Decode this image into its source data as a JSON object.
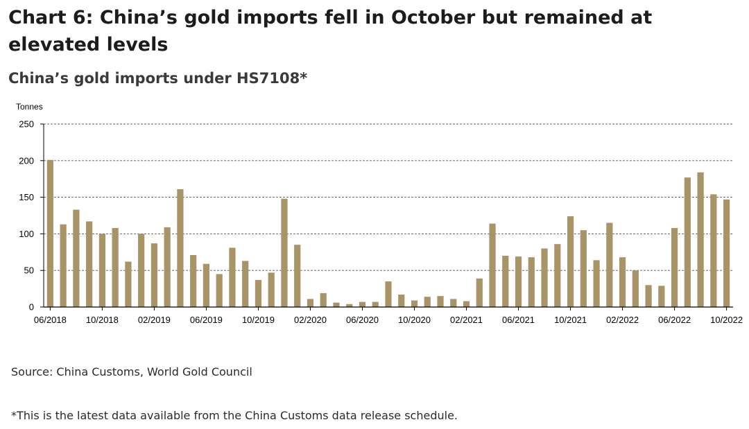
{
  "title": "Chart 6: China’s gold imports fell in October but remained at elevated levels",
  "subtitle": "China’s gold imports under HS7108*",
  "source": "Source: China Customs, World Gold Council",
  "footnote": "*This is the latest data available from the China Customs data release schedule.",
  "colors": {
    "bar": "#a89467",
    "gridline": "#555555",
    "axis": "#000000"
  },
  "chart_data": {
    "type": "bar",
    "ylabel": "Tonnes",
    "xlabel": "",
    "ylim": [
      0,
      250
    ],
    "yticks": [
      0,
      50,
      100,
      150,
      200,
      250
    ],
    "grid": "horizontal-dashed",
    "categories": [
      "06/2018",
      "07/2018",
      "08/2018",
      "09/2018",
      "10/2018",
      "11/2018",
      "12/2018",
      "01/2019",
      "02/2019",
      "03/2019",
      "04/2019",
      "05/2019",
      "06/2019",
      "07/2019",
      "08/2019",
      "09/2019",
      "10/2019",
      "11/2019",
      "12/2019",
      "01/2020",
      "02/2020",
      "03/2020",
      "04/2020",
      "05/2020",
      "06/2020",
      "07/2020",
      "08/2020",
      "09/2020",
      "10/2020",
      "11/2020",
      "12/2020",
      "01/2021",
      "02/2021",
      "03/2021",
      "04/2021",
      "05/2021",
      "06/2021",
      "07/2021",
      "08/2021",
      "09/2021",
      "10/2021",
      "11/2021",
      "12/2021",
      "01/2022",
      "02/2022",
      "03/2022",
      "04/2022",
      "05/2022",
      "06/2022",
      "07/2022",
      "08/2022",
      "09/2022",
      "10/2022"
    ],
    "values": [
      201,
      113,
      133,
      117,
      100,
      108,
      62,
      100,
      87,
      109,
      161,
      71,
      59,
      45,
      81,
      63,
      37,
      47,
      148,
      85,
      11,
      19,
      6,
      4,
      7,
      7,
      35,
      17,
      9,
      14,
      15,
      11,
      8,
      39,
      114,
      70,
      69,
      68,
      80,
      86,
      124,
      105,
      64,
      115,
      68,
      50,
      30,
      29,
      108,
      177,
      184,
      154,
      147
    ],
    "x_tick_labels": [
      {
        "index": 0,
        "label": "06/2018"
      },
      {
        "index": 4,
        "label": "10/2018"
      },
      {
        "index": 8,
        "label": "02/2019"
      },
      {
        "index": 12,
        "label": "06/2019"
      },
      {
        "index": 16,
        "label": "10/2019"
      },
      {
        "index": 20,
        "label": "02/2020"
      },
      {
        "index": 24,
        "label": "06/2020"
      },
      {
        "index": 28,
        "label": "10/2020"
      },
      {
        "index": 32,
        "label": "02/2021"
      },
      {
        "index": 36,
        "label": "06/2021"
      },
      {
        "index": 40,
        "label": "10/2021"
      },
      {
        "index": 44,
        "label": "02/2022"
      },
      {
        "index": 48,
        "label": "06/2022"
      },
      {
        "index": 52,
        "label": "10/2022"
      }
    ]
  }
}
